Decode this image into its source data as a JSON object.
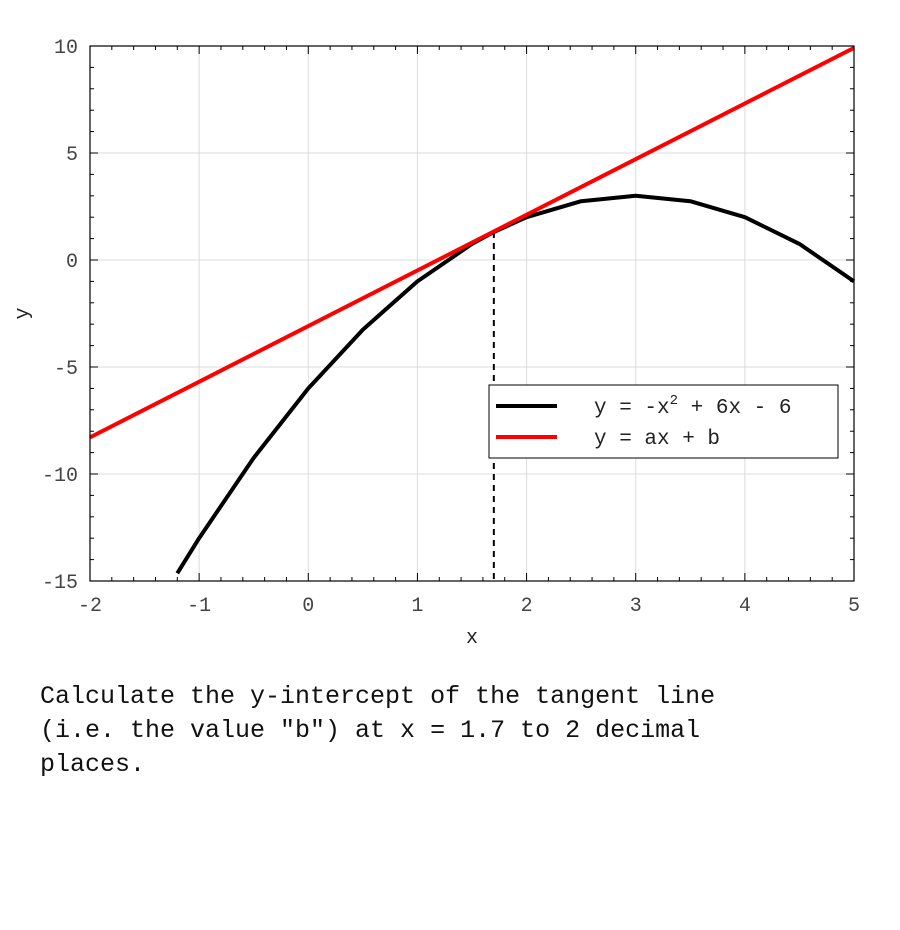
{
  "chart_data": {
    "type": "line",
    "xlabel": "x",
    "ylabel": "y",
    "xlim": [
      -2,
      5
    ],
    "ylim": [
      -15,
      10
    ],
    "x_ticks": [
      -2,
      -1,
      0,
      1,
      2,
      3,
      4,
      5
    ],
    "y_ticks": [
      -15,
      -10,
      -5,
      0,
      5,
      10
    ],
    "grid": true,
    "legend_position": "lower-right",
    "series": [
      {
        "name_prefix": "y = -x",
        "name_sup": "2",
        "name_suffix": " + 6x - 6",
        "formula": "-x^2 + 6x - 6",
        "color": "#000000",
        "x": [
          -1.2,
          -1.0,
          -0.5,
          0,
          0.5,
          1.0,
          1.5,
          1.7,
          2.0,
          2.5,
          3.0,
          3.5,
          4.0,
          4.5,
          5.0
        ],
        "y": [
          -14.64,
          -13.0,
          -9.25,
          -6.0,
          -3.25,
          -1.0,
          0.75,
          1.31,
          2.0,
          2.75,
          3.0,
          2.75,
          2.0,
          0.75,
          -1.0
        ]
      },
      {
        "name": "y = ax + b",
        "color": "#ff0000",
        "x": [
          -2,
          5
        ],
        "y": [
          -8.29,
          9.91
        ]
      }
    ],
    "tangent_point": {
      "x": 1.7,
      "y": 1.31
    }
  },
  "question": "Calculate the y-intercept of the tangent line\n(i.e. the value \"b\") at x = 1.7 to 2 decimal\nplaces."
}
